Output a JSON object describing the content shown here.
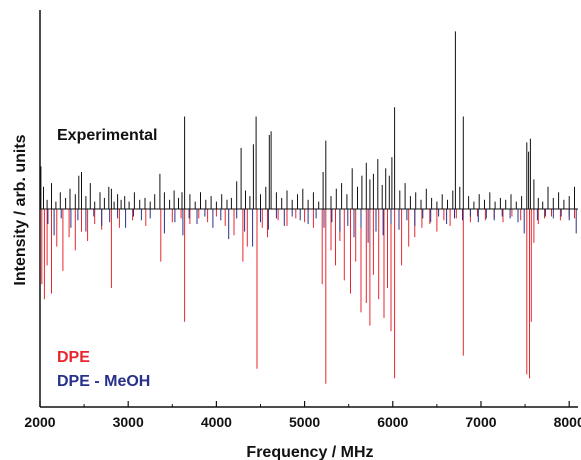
{
  "chart_data": {
    "type": "stick-spectrum",
    "xlabel": "Frequency / MHz",
    "ylabel": "Intensity / arb. units",
    "xlim": [
      2000,
      8100
    ],
    "x_ticks": [
      2000,
      3000,
      4000,
      5000,
      6000,
      7000,
      8000
    ],
    "ylim": [
      -1.0,
      1.0
    ],
    "grid": false,
    "colors": {
      "experimental": "#111111",
      "dpe": "#e8262d",
      "dpe_meoh": "#27308a",
      "axis": "#111111"
    },
    "annotations": [
      {
        "key": "experimental",
        "text": "Experimental",
        "color": "#111111"
      },
      {
        "key": "dpe",
        "text": "DPE",
        "color": "#e8262d"
      },
      {
        "key": "dpe_meoh",
        "text": "DPE - MeOH",
        "color": "#27308a"
      }
    ],
    "series": [
      {
        "key": "experimental",
        "direction": "up",
        "x": [
          2010,
          2040,
          2080,
          2130,
          2180,
          2230,
          2290,
          2340,
          2400,
          2440,
          2470,
          2520,
          2570,
          2620,
          2680,
          2730,
          2780,
          2810,
          2840,
          2880,
          2920,
          2960,
          3010,
          3070,
          3130,
          3190,
          3250,
          3300,
          3360,
          3410,
          3470,
          3520,
          3570,
          3610,
          3640,
          3700,
          3760,
          3820,
          3880,
          3940,
          4000,
          4060,
          4120,
          4170,
          4230,
          4280,
          4330,
          4380,
          4420,
          4450,
          4500,
          4560,
          4600,
          4620,
          4680,
          4740,
          4800,
          4860,
          4920,
          4980,
          5040,
          5100,
          5160,
          5210,
          5240,
          5300,
          5360,
          5420,
          5480,
          5540,
          5600,
          5650,
          5700,
          5740,
          5780,
          5830,
          5880,
          5920,
          5960,
          5990,
          6020,
          6080,
          6140,
          6200,
          6260,
          6320,
          6380,
          6440,
          6500,
          6560,
          6620,
          6680,
          6710,
          6760,
          6800,
          6860,
          6920,
          6980,
          7040,
          7100,
          7160,
          7220,
          7280,
          7340,
          7400,
          7460,
          7520,
          7540,
          7560,
          7600,
          7650,
          7700,
          7760,
          7820,
          7880,
          7940,
          8000,
          8060
        ],
        "y": [
          0.23,
          0.12,
          0.05,
          0.14,
          0.04,
          0.09,
          0.06,
          0.11,
          0.08,
          0.18,
          0.2,
          0.07,
          0.14,
          0.04,
          0.09,
          0.06,
          0.12,
          0.11,
          0.04,
          0.08,
          0.05,
          0.07,
          0.04,
          0.09,
          0.05,
          0.06,
          0.04,
          0.08,
          0.19,
          0.09,
          0.05,
          0.1,
          0.06,
          0.09,
          0.5,
          0.08,
          0.04,
          0.09,
          0.05,
          0.07,
          0.04,
          0.08,
          0.05,
          0.06,
          0.15,
          0.33,
          0.1,
          0.07,
          0.35,
          0.5,
          0.08,
          0.12,
          0.4,
          0.42,
          0.09,
          0.06,
          0.1,
          0.05,
          0.08,
          0.11,
          0.05,
          0.09,
          0.04,
          0.2,
          0.37,
          0.07,
          0.11,
          0.14,
          0.08,
          0.22,
          0.12,
          0.18,
          0.25,
          0.16,
          0.19,
          0.27,
          0.13,
          0.22,
          0.18,
          0.28,
          0.55,
          0.1,
          0.14,
          0.07,
          0.09,
          0.05,
          0.11,
          0.06,
          0.04,
          0.08,
          0.05,
          0.1,
          0.96,
          0.12,
          0.5,
          0.07,
          0.04,
          0.08,
          0.05,
          0.09,
          0.04,
          0.06,
          0.05,
          0.08,
          0.04,
          0.07,
          0.36,
          0.31,
          0.38,
          0.16,
          0.06,
          0.04,
          0.12,
          0.06,
          0.09,
          0.05,
          0.07,
          0.12
        ]
      },
      {
        "key": "dpe",
        "direction": "down",
        "x": [
          2000,
          2020,
          2050,
          2080,
          2130,
          2190,
          2260,
          2330,
          2400,
          2470,
          2540,
          2620,
          2700,
          2810,
          2900,
          3050,
          3200,
          3370,
          3500,
          3600,
          3640,
          3700,
          3800,
          3900,
          4000,
          4100,
          4200,
          4300,
          4350,
          4460,
          4520,
          4580,
          4700,
          4800,
          4900,
          5000,
          5100,
          5200,
          5240,
          5300,
          5350,
          5400,
          5450,
          5520,
          5580,
          5640,
          5700,
          5740,
          5780,
          5840,
          5900,
          5940,
          5980,
          6020,
          6100,
          6180,
          6250,
          6330,
          6420,
          6500,
          6580,
          6650,
          6720,
          6800,
          6880,
          6960,
          7050,
          7150,
          7250,
          7350,
          7450,
          7520,
          7550,
          7570,
          7600,
          7650,
          7720,
          7800,
          7900,
          8000,
          8060
        ],
        "y": [
          -0.55,
          -0.4,
          -0.48,
          -0.3,
          -0.45,
          -0.2,
          -0.33,
          -0.15,
          -0.22,
          -0.12,
          -0.17,
          -0.08,
          -0.11,
          -0.42,
          -0.1,
          -0.06,
          -0.09,
          -0.28,
          -0.07,
          -0.05,
          -0.6,
          -0.08,
          -0.05,
          -0.07,
          -0.04,
          -0.09,
          -0.14,
          -0.28,
          -0.2,
          -0.85,
          -0.1,
          -0.15,
          -0.06,
          -0.09,
          -0.05,
          -0.07,
          -0.1,
          -0.4,
          -0.93,
          -0.22,
          -0.3,
          -0.17,
          -0.38,
          -0.45,
          -0.28,
          -0.55,
          -0.5,
          -0.62,
          -0.35,
          -0.48,
          -0.58,
          -0.42,
          -0.65,
          -0.9,
          -0.3,
          -0.2,
          -0.15,
          -0.1,
          -0.08,
          -0.12,
          -0.06,
          -0.09,
          -0.05,
          -0.78,
          -0.07,
          -0.04,
          -0.06,
          -0.05,
          -0.07,
          -0.04,
          -0.06,
          -0.88,
          -0.9,
          -0.6,
          -0.18,
          -0.08,
          -0.05,
          -0.04,
          -0.06,
          -0.04,
          -0.05
        ]
      },
      {
        "key": "dpe_meoh",
        "direction": "down",
        "x": [
          2090,
          2160,
          2240,
          2350,
          2430,
          2520,
          2610,
          2700,
          2790,
          2880,
          2970,
          3060,
          3150,
          3250,
          3410,
          3530,
          3620,
          3690,
          3780,
          3870,
          3960,
          4050,
          4140,
          4230,
          4320,
          4410,
          4500,
          4590,
          4680,
          4770,
          4860,
          4950,
          5040,
          5130,
          5220,
          5310,
          5400,
          5490,
          5560,
          5640,
          5720,
          5810,
          5890,
          5980,
          6070,
          6160,
          6250,
          6340,
          6430,
          6520,
          6610,
          6700,
          6790,
          6880,
          6970,
          7060,
          7150,
          7240,
          7330,
          7420,
          7490,
          7640,
          7730,
          7820,
          7910,
          8000,
          8080
        ],
        "y": [
          -0.08,
          -0.14,
          -0.05,
          -0.1,
          -0.06,
          -0.12,
          -0.04,
          -0.09,
          -0.07,
          -0.05,
          -0.1,
          -0.04,
          -0.06,
          -0.05,
          -0.13,
          -0.07,
          -0.14,
          -0.05,
          -0.08,
          -0.04,
          -0.1,
          -0.06,
          -0.16,
          -0.05,
          -0.12,
          -0.2,
          -0.07,
          -0.11,
          -0.05,
          -0.09,
          -0.04,
          -0.06,
          -0.08,
          -0.05,
          -0.1,
          -0.07,
          -0.12,
          -0.09,
          -0.15,
          -0.1,
          -0.18,
          -0.12,
          -0.14,
          -0.08,
          -0.11,
          -0.06,
          -0.09,
          -0.05,
          -0.07,
          -0.04,
          -0.08,
          -0.05,
          -0.06,
          -0.04,
          -0.07,
          -0.05,
          -0.06,
          -0.04,
          -0.05,
          -0.07,
          -0.13,
          -0.06,
          -0.04,
          -0.05,
          -0.04,
          -0.06,
          -0.13
        ]
      }
    ]
  }
}
